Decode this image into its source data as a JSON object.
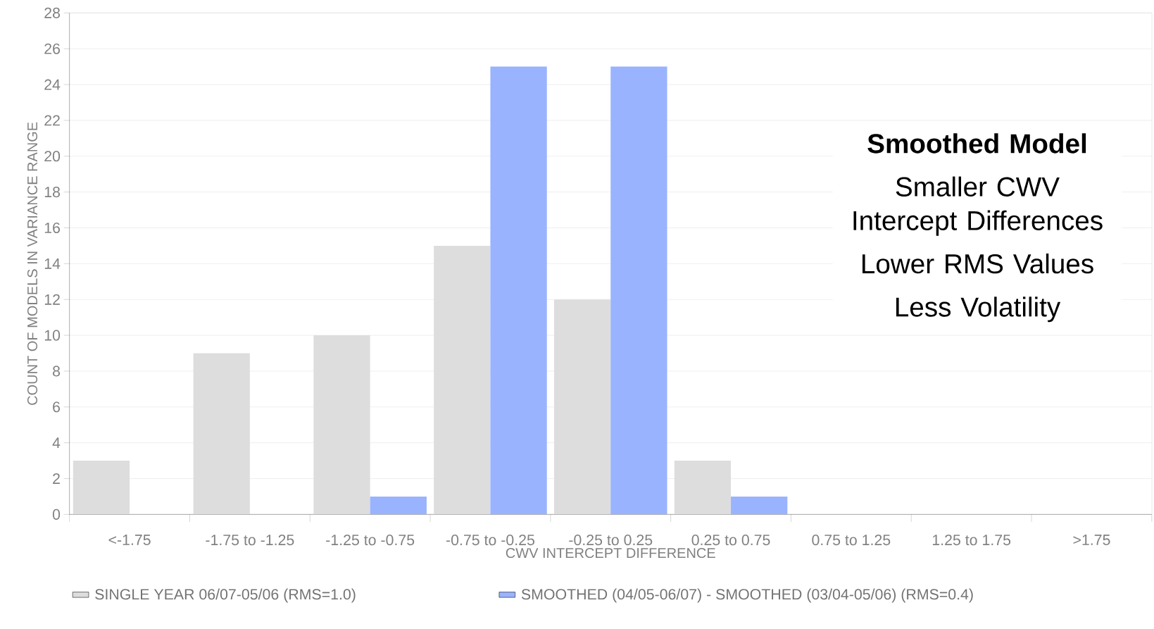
{
  "chart_data": {
    "type": "bar",
    "categories": [
      "<-1.75",
      "-1.75 to -1.25",
      "-1.25 to -0.75",
      "-0.75 to -0.25",
      "-0.25 to 0.25",
      "0.25 to 0.75",
      "0.75 to 1.25",
      "1.25 to 1.75",
      ">1.75"
    ],
    "series": [
      {
        "name": "SINGLE YEAR 06/07-05/06 (RMS=1.0)",
        "color": "#dddddd",
        "values": [
          3,
          9,
          10,
          15,
          12,
          3,
          0,
          0,
          0
        ]
      },
      {
        "name": "SMOOTHED (04/05-06/07) - SMOOTHED (03/04-05/06) (RMS=0.4)",
        "color": "#99b3ff",
        "values": [
          0,
          0,
          1,
          25,
          25,
          1,
          0,
          0,
          0
        ]
      }
    ],
    "xlabel": "CWV INTERCEPT DIFFERENCE",
    "ylabel": "COUNT OF MODELS IN VARIANCE RANGE",
    "ylim": [
      0,
      28
    ],
    "yticks": [
      0,
      2,
      4,
      6,
      8,
      10,
      12,
      14,
      16,
      18,
      20,
      22,
      24,
      26,
      28
    ],
    "grid": "y",
    "legend": "bottom",
    "annotations": [
      "Smoothed Model",
      "Smaller CWV Intercept Differences",
      "Lower RMS Values",
      "Less Volatility"
    ]
  }
}
